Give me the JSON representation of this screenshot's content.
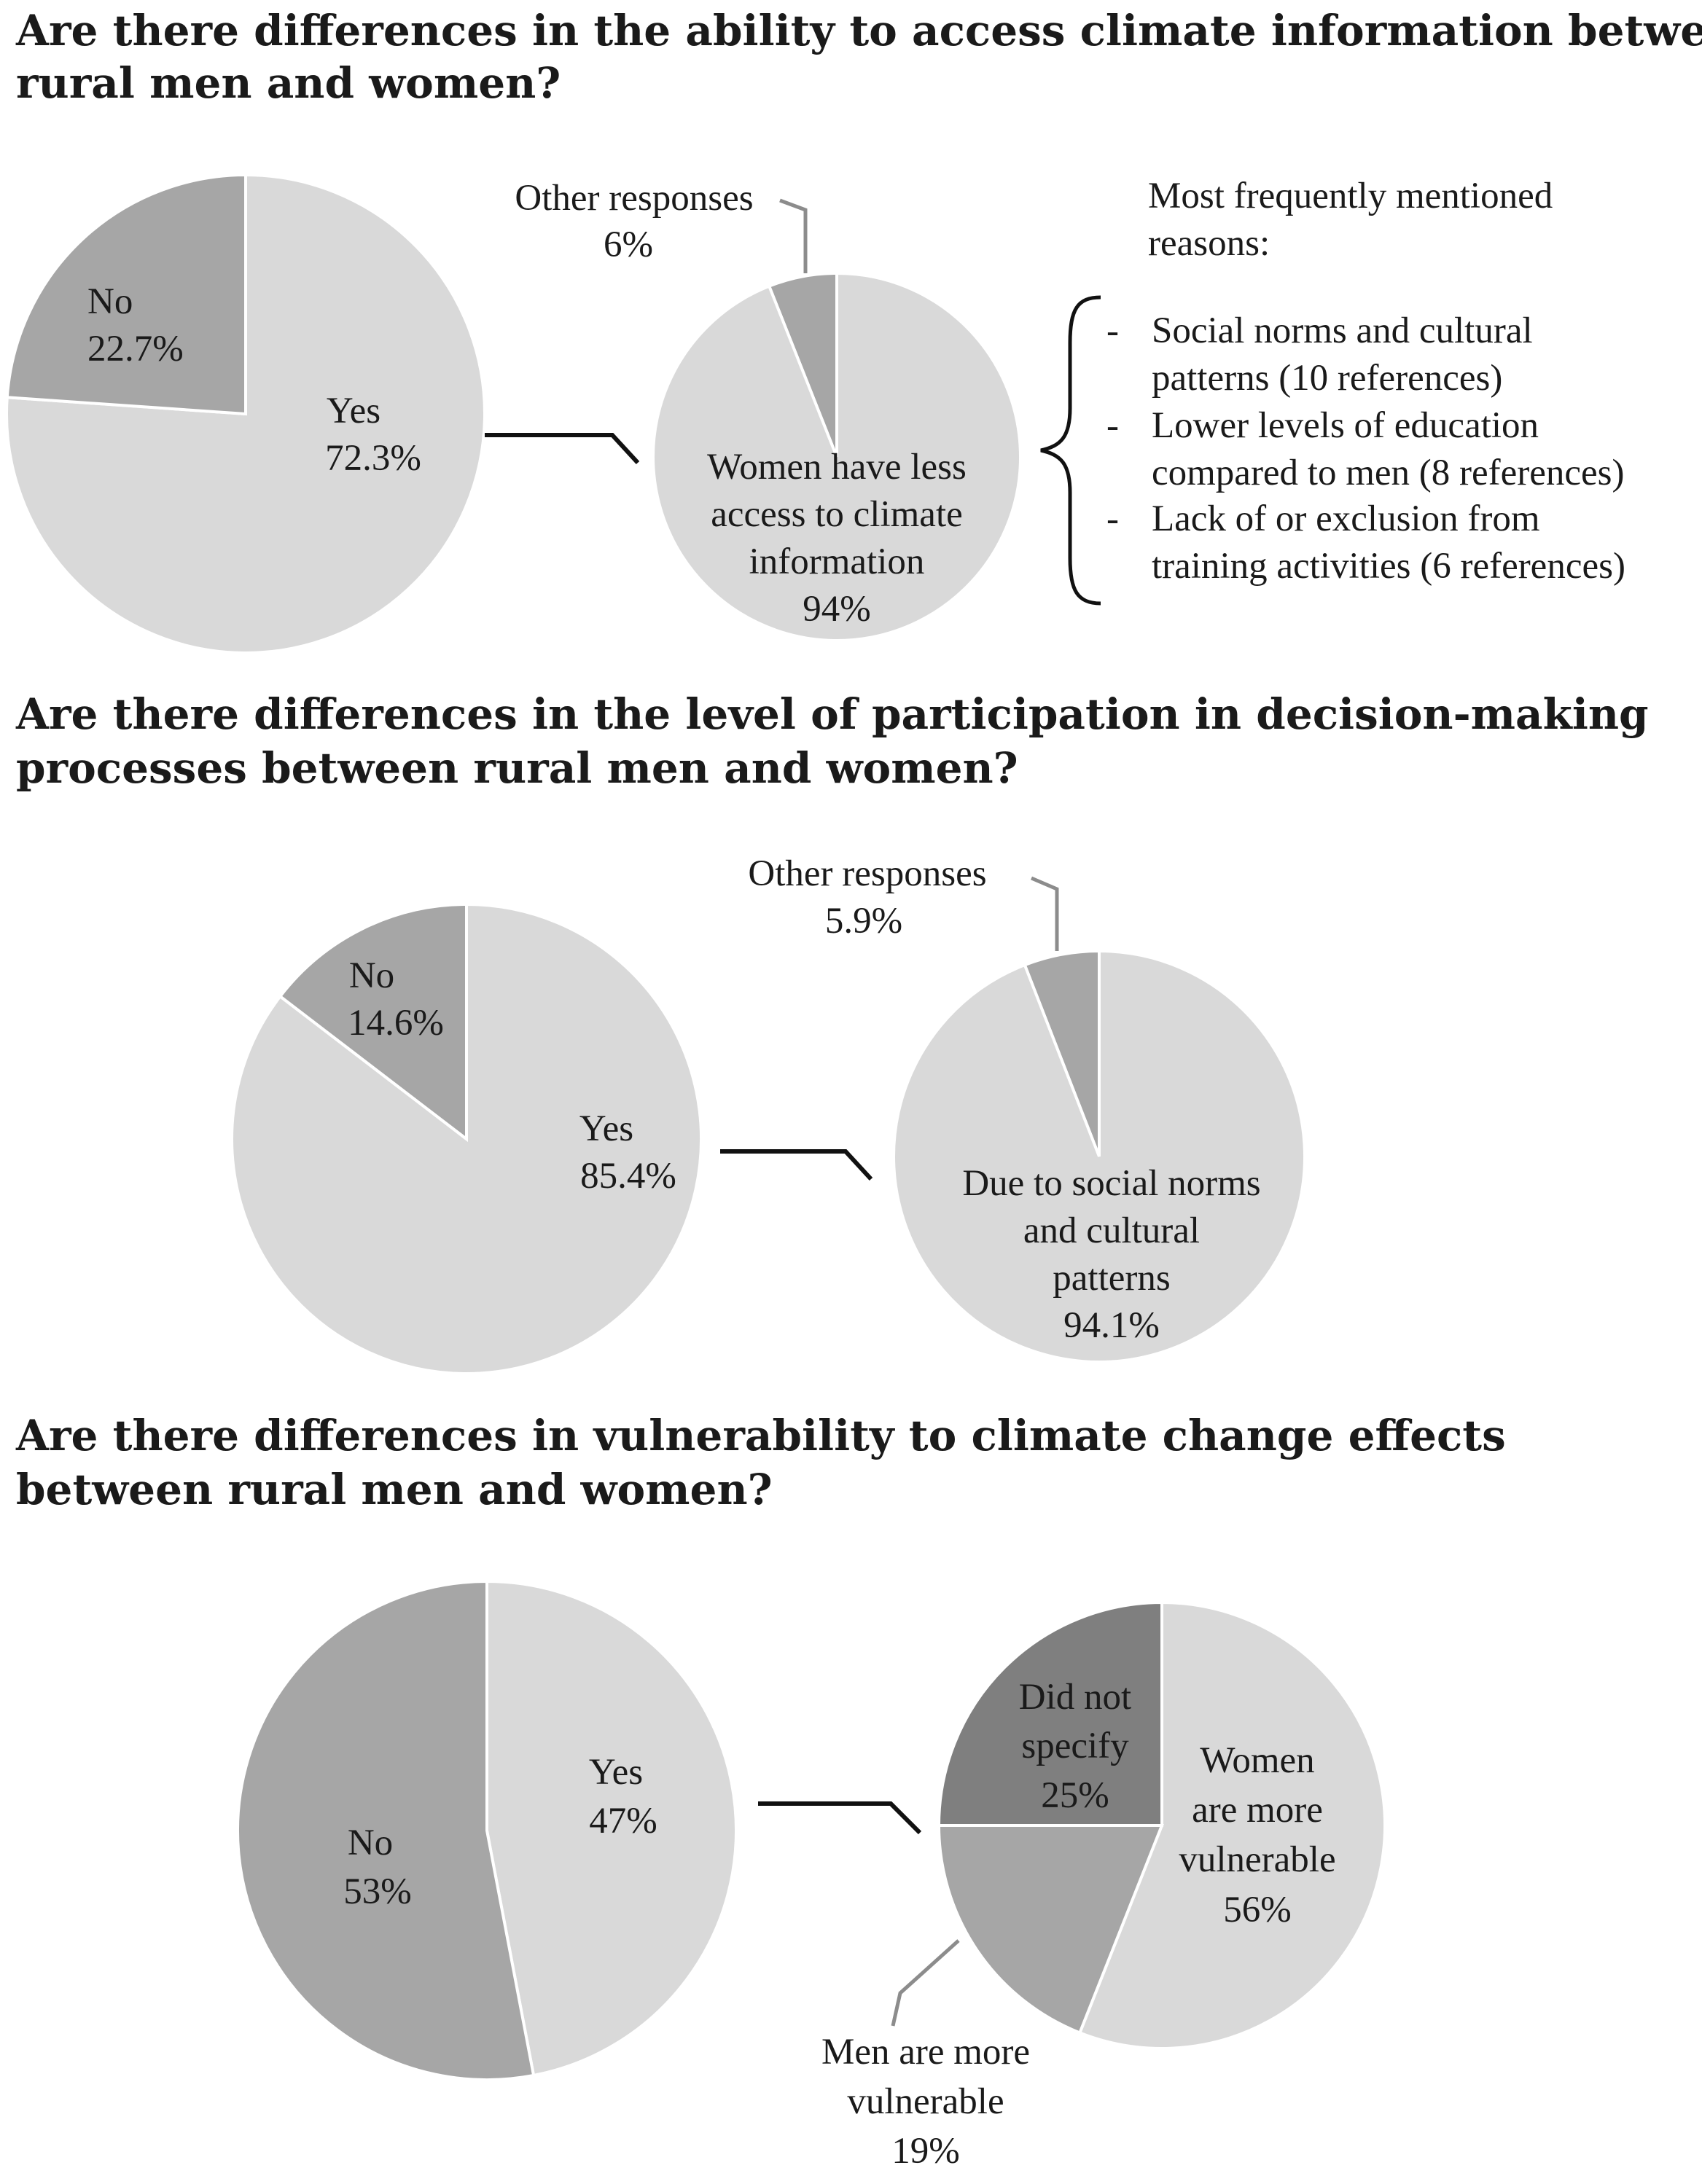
{
  "colors": {
    "yes": "#d9d9d9",
    "no": "#a6a6a6",
    "minor": "#a6a6a6",
    "main": "#d9d9d9",
    "dark": "#7f7f7f",
    "text": "#1a1a1a"
  },
  "chart_data": [
    {
      "type": "pie",
      "id": "p1-main",
      "title": "Are there differences in the ability to access climate information between rural men and women?",
      "title_lines": [
        "Are there differences in the ability to access climate information between",
        "rural men and women?"
      ],
      "slices": [
        {
          "key": "yes",
          "label": "Yes",
          "value": 72.3,
          "value_text": "72.3%"
        },
        {
          "key": "no",
          "label": "No",
          "value": 22.7,
          "value_text": "22.7%"
        }
      ]
    },
    {
      "type": "pie",
      "id": "p1-sub",
      "slices": [
        {
          "key": "main",
          "label_lines": [
            "Women have less",
            "access to climate",
            "information"
          ],
          "value": 94,
          "value_text": "94%"
        },
        {
          "key": "minor",
          "label_lines": [
            "Other responses"
          ],
          "value": 6,
          "value_text": "6%"
        }
      ],
      "reasons_heading": [
        "Most frequently mentioned",
        "reasons:"
      ],
      "reasons": [
        [
          "Social norms and cultural",
          "patterns (10 references)"
        ],
        [
          "Lower levels of education",
          "compared to men (8 references)"
        ],
        [
          "Lack of or exclusion from",
          "training activities (6 references)"
        ]
      ]
    },
    {
      "type": "pie",
      "id": "p2-main",
      "title": "Are there differences in the level of participation in decision-making processes between rural men and women?",
      "title_lines": [
        "Are there differences in the level of participation in decision-making",
        "processes between rural men and women?"
      ],
      "slices": [
        {
          "key": "yes",
          "label": "Yes",
          "value": 85.4,
          "value_text": "85.4%"
        },
        {
          "key": "no",
          "label": "No",
          "value": 14.6,
          "value_text": "14.6%"
        }
      ]
    },
    {
      "type": "pie",
      "id": "p2-sub",
      "slices": [
        {
          "key": "main",
          "label_lines": [
            "Due to social norms",
            "and cultural",
            "patterns"
          ],
          "value": 94.1,
          "value_text": "94.1%"
        },
        {
          "key": "minor",
          "label_lines": [
            "Other responses"
          ],
          "value": 5.9,
          "value_text": "5.9%"
        }
      ]
    },
    {
      "type": "pie",
      "id": "p3-main",
      "title": "Are there differences in vulnerability to climate change effects between rural men and women?",
      "title_lines": [
        "Are there differences in vulnerability to climate change effects",
        "between rural men and women?"
      ],
      "slices": [
        {
          "key": "yes",
          "label": "Yes",
          "value": 47,
          "value_text": "47%"
        },
        {
          "key": "no",
          "label": "No",
          "value": 53,
          "value_text": "53%"
        }
      ]
    },
    {
      "type": "pie",
      "id": "p3-sub",
      "slices": [
        {
          "key": "women",
          "label_lines": [
            "Women",
            "are more",
            "vulnerable"
          ],
          "value": 56,
          "value_text": "56%"
        },
        {
          "key": "men",
          "label_lines": [
            "Men are more",
            "vulnerable"
          ],
          "value": 19,
          "value_text": "19%"
        },
        {
          "key": "unspecified",
          "label_lines": [
            "Did not",
            "specify"
          ],
          "value": 25,
          "value_text": "25%"
        }
      ]
    }
  ]
}
